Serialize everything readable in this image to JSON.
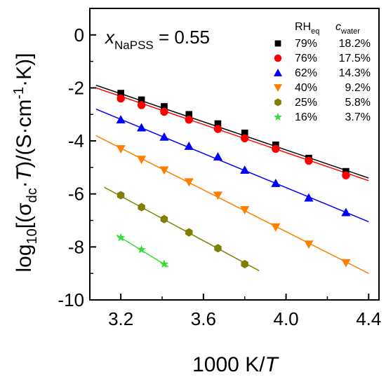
{
  "chart_data": {
    "type": "scatter",
    "annotation": {
      "var": "x",
      "sub": "NaPSS",
      "rest": " = 0.55"
    },
    "xlabel": {
      "pre": "1000 K/",
      "italic": "T"
    },
    "ylabel": {
      "a": "log",
      "a_sub": "10",
      "b": "[(σ",
      "b_sub": "dc",
      "c": "·",
      "d": "T",
      "e": ")/(S·cm",
      "e_sup": "-1",
      "f": "·K)]"
    },
    "xlim": [
      3.05,
      4.45
    ],
    "ylim": [
      -10,
      1
    ],
    "xticks": [
      {
        "value": 3.2,
        "label": "3.2"
      },
      {
        "value": 3.6,
        "label": "3.6"
      },
      {
        "value": 4.0,
        "label": "4.0"
      },
      {
        "value": 4.4,
        "label": "4.4"
      }
    ],
    "yticks": [
      {
        "value": 0,
        "label": "0"
      },
      {
        "value": -2,
        "label": "-2"
      },
      {
        "value": -4,
        "label": "-4"
      },
      {
        "value": -6,
        "label": "-6"
      },
      {
        "value": -8,
        "label": "-8"
      },
      {
        "value": -10,
        "label": "-10"
      }
    ],
    "legend_position": "top-right",
    "legend_headers": {
      "rh": "RH",
      "rh_sub": "eq",
      "c": "c",
      "c_sub": "water"
    },
    "series": [
      {
        "name": "79%",
        "cwater": "18.2%",
        "marker": "square",
        "color": "#000000",
        "x": [
          3.2,
          3.3,
          3.41,
          3.53,
          3.67,
          3.8,
          3.95,
          4.11,
          4.29
        ],
        "y": [
          -2.2,
          -2.45,
          -2.7,
          -3.0,
          -3.35,
          -3.7,
          -4.15,
          -4.65,
          -5.15
        ],
        "fit": [
          [
            3.08,
            -1.9
          ],
          [
            4.4,
            -5.4
          ]
        ]
      },
      {
        "name": "76%",
        "cwater": "17.5%",
        "marker": "circle",
        "color": "#ff0000",
        "x": [
          3.2,
          3.3,
          3.41,
          3.53,
          3.67,
          3.8,
          3.95,
          4.11,
          4.29
        ],
        "y": [
          -2.4,
          -2.65,
          -2.9,
          -3.2,
          -3.55,
          -3.9,
          -4.3,
          -4.75,
          -5.3
        ],
        "fit": [
          [
            3.08,
            -2.0
          ],
          [
            4.4,
            -5.5
          ]
        ]
      },
      {
        "name": "62%",
        "cwater": "14.3%",
        "marker": "triangle-up",
        "color": "#0000ff",
        "x": [
          3.2,
          3.3,
          3.41,
          3.53,
          3.67,
          3.8,
          3.95,
          4.11,
          4.29
        ],
        "y": [
          -3.2,
          -3.5,
          -3.85,
          -4.2,
          -4.6,
          -5.1,
          -5.6,
          -6.15,
          -6.7
        ],
        "fit": [
          [
            3.08,
            -2.8
          ],
          [
            4.4,
            -7.05
          ]
        ]
      },
      {
        "name": "40%",
        "cwater": "9.2%",
        "marker": "triangle-down",
        "color": "#ff8000",
        "x": [
          3.2,
          3.3,
          3.41,
          3.53,
          3.67,
          3.8,
          3.95,
          4.11,
          4.29
        ],
        "y": [
          -4.3,
          -4.7,
          -5.1,
          -5.55,
          -6.05,
          -6.6,
          -7.25,
          -7.9,
          -8.6
        ],
        "fit": [
          [
            3.08,
            -3.8
          ],
          [
            4.4,
            -9.0
          ]
        ]
      },
      {
        "name": "25%",
        "cwater": "5.8%",
        "marker": "hexagon",
        "color": "#808000",
        "x": [
          3.2,
          3.3,
          3.41,
          3.53,
          3.67,
          3.8
        ],
        "y": [
          -6.05,
          -6.5,
          -6.95,
          -7.45,
          -8.05,
          -8.65
        ],
        "fit": [
          [
            3.12,
            -5.75
          ],
          [
            3.87,
            -8.9
          ]
        ]
      },
      {
        "name": "16%",
        "cwater": "3.7%",
        "marker": "star",
        "color": "#33dd33",
        "x": [
          3.2,
          3.3,
          3.41
        ],
        "y": [
          -7.65,
          -8.1,
          -8.65
        ],
        "fit": [
          [
            3.18,
            -7.55
          ],
          [
            3.43,
            -8.75
          ]
        ]
      }
    ]
  }
}
